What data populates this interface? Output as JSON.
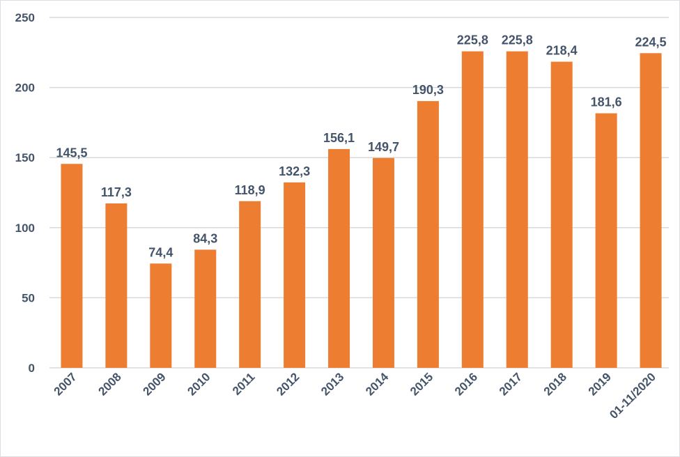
{
  "chart_data": {
    "type": "bar",
    "title": "",
    "xlabel": "",
    "ylabel": "",
    "categories": [
      "2007",
      "2008",
      "2009",
      "2010",
      "2011",
      "2012",
      "2013",
      "2014",
      "2015",
      "2016",
      "2017",
      "2018",
      "2019",
      "01-11/2020"
    ],
    "values": [
      145.5,
      117.3,
      74.4,
      84.3,
      118.9,
      132.3,
      156.1,
      149.7,
      190.3,
      225.8,
      225.8,
      218.4,
      181.6,
      224.5
    ],
    "data_labels": [
      "145,5",
      "117,3",
      "74,4",
      "84,3",
      "118,9",
      "132,3",
      "156,1",
      "149,7",
      "190,3",
      "225,8",
      "225,8",
      "218,4",
      "181,6",
      "224,5"
    ],
    "ylim": [
      0,
      250
    ],
    "yticks": [
      0,
      50,
      100,
      150,
      200,
      250
    ],
    "ytick_labels": [
      "0",
      "50",
      "100",
      "150",
      "200",
      "250"
    ],
    "grid": true,
    "legend": "none",
    "colors": {
      "bar": "#ed7d31",
      "text": "#44546a",
      "grid": "#d9d9d9"
    }
  }
}
